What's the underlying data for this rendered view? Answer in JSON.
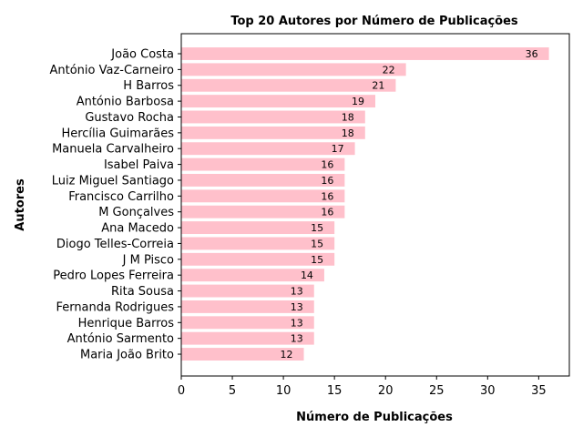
{
  "chart_data": {
    "type": "bar",
    "orientation": "horizontal",
    "title": "Top 20 Autores por Número de Publicações",
    "xlabel": "Número de Publicações",
    "ylabel": "Autores",
    "xlim": [
      0,
      38
    ],
    "xticks": [
      0,
      5,
      10,
      15,
      20,
      25,
      30,
      35
    ],
    "bar_color": "#ffc0cb",
    "grid": false,
    "categories": [
      "João Costa",
      "António Vaz-Carneiro",
      "H Barros",
      "António Barbosa",
      "Gustavo Rocha",
      "Hercília Guimarães",
      "Manuela Carvalheiro",
      "Isabel Paiva",
      "Luiz Miguel Santiago",
      "Francisco Carrilho",
      "M Gonçalves",
      "Ana Macedo",
      "Diogo Telles-Correia",
      "J M Pisco",
      "Pedro Lopes Ferreira",
      "Rita Sousa",
      "Fernanda Rodrigues",
      "Henrique Barros",
      "António Sarmento",
      "Maria João Brito"
    ],
    "values": [
      36,
      22,
      21,
      19,
      18,
      18,
      17,
      16,
      16,
      16,
      16,
      15,
      15,
      15,
      14,
      13,
      13,
      13,
      13,
      12
    ]
  }
}
